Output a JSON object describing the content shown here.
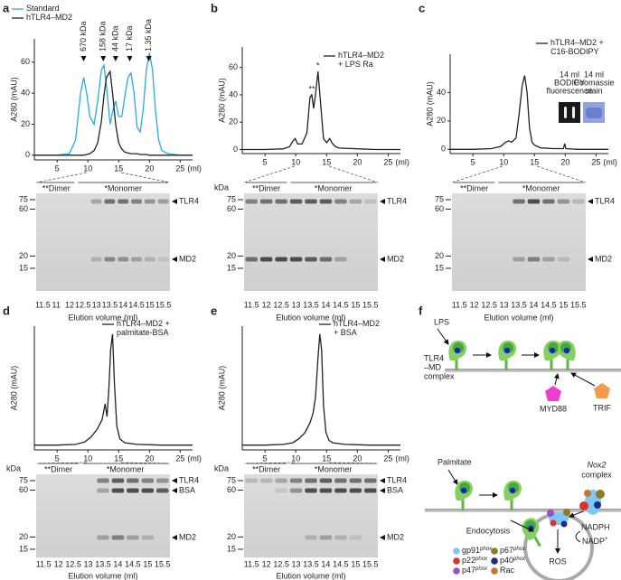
{
  "chart_data": [
    {
      "type": "line",
      "panel": "a",
      "xlabel": "(ml)",
      "ylabel": "A280 (mAU)",
      "xlim": [
        1.3,
        27
      ],
      "xticks": [
        5,
        10,
        15,
        20,
        25
      ],
      "ylim": [
        -3,
        75
      ],
      "yticks": [
        0,
        20,
        40,
        60
      ],
      "legend": "upper left",
      "x": [
        1.3,
        5,
        7,
        8,
        8.8,
        9.3,
        9.8,
        10.3,
        11,
        11.6,
        12.2,
        12.6,
        13,
        13.6,
        14,
        14.5,
        15,
        15.5,
        16,
        16.5,
        17,
        17.5,
        18,
        18.5,
        19,
        19.5,
        20,
        20.5,
        21,
        21.5,
        22,
        23,
        25,
        27
      ],
      "series": [
        {
          "name": "Standard",
          "color": "#29abe2",
          "values": [
            0,
            0,
            1,
            10,
            40,
            50,
            40,
            25,
            20,
            35,
            55,
            58,
            45,
            20,
            28,
            35,
            25,
            25,
            38,
            50,
            53,
            40,
            18,
            15,
            30,
            55,
            66,
            55,
            28,
            10,
            3,
            1,
            0,
            0
          ]
        },
        {
          "name": "hTLR4–MD2",
          "color": "#222222",
          "values": [
            0,
            0,
            0,
            0,
            0,
            0,
            0.5,
            1,
            3,
            8,
            22,
            38,
            50,
            54,
            40,
            20,
            8,
            4,
            2,
            1.5,
            1,
            1,
            1,
            0.5,
            0.5,
            0.5,
            0,
            0,
            0,
            0,
            0,
            0,
            0,
            0
          ]
        }
      ],
      "markers": [
        {
          "x": 9.3,
          "label": "670 kDa"
        },
        {
          "x": 12.5,
          "label": "158 kDa"
        },
        {
          "x": 14.5,
          "label": "44 kDa"
        },
        {
          "x": 16.8,
          "label": "17 kDa"
        },
        {
          "x": 19.9,
          "label": "1.35 kDa"
        }
      ]
    },
    {
      "type": "line",
      "panel": "b",
      "xlabel": "(ml)",
      "ylabel": "A280 (mAU)",
      "xlim": [
        1.3,
        27
      ],
      "xticks": [
        5,
        10,
        15,
        20,
        25
      ],
      "ylim": [
        -3,
        75
      ],
      "yticks": [
        0,
        20,
        40,
        60
      ],
      "legend": "upper right",
      "x": [
        1.3,
        5,
        8,
        9,
        9.5,
        9.9,
        10.3,
        11,
        11.8,
        12.3,
        12.6,
        12.9,
        13.2,
        13.6,
        14,
        14.5,
        15,
        15.5,
        16,
        16.5,
        17,
        20,
        23,
        27
      ],
      "series": [
        {
          "name": "hTLR4–MD2\n+ LPS Ra",
          "color": "#222222",
          "values": [
            0,
            0,
            0.5,
            2,
            6,
            8,
            4,
            4,
            12,
            38,
            40,
            30,
            40,
            57,
            35,
            8,
            5,
            8,
            4,
            2,
            1,
            0.5,
            0,
            0
          ]
        }
      ],
      "annotations": [
        {
          "text": "**",
          "x": 12.6,
          "y": 40
        },
        {
          "text": "*",
          "x": 13.6,
          "y": 57
        }
      ]
    },
    {
      "type": "line",
      "panel": "c",
      "xlabel": "(ml)",
      "ylabel": "A280 (mAU)",
      "xlim": [
        1.3,
        27
      ],
      "xticks": [
        5,
        10,
        15,
        20,
        25
      ],
      "ylim": [
        -3,
        67
      ],
      "yticks": [
        0,
        20,
        40
      ],
      "legend": "upper right",
      "x": [
        1.3,
        5,
        8,
        9.5,
        10.3,
        10.8,
        11.3,
        12,
        12.5,
        13,
        13.4,
        13.8,
        14.2,
        14.6,
        15,
        16,
        18,
        19.7,
        19.9,
        20.1,
        22,
        25,
        27
      ],
      "series": [
        {
          "name": "hTLR4–MD2 +\nC16-BODIPY",
          "color": "#222222",
          "values": [
            0,
            0,
            0.5,
            2,
            5,
            6,
            5,
            8,
            25,
            45,
            52,
            40,
            15,
            5,
            3,
            1,
            0.5,
            0.5,
            4,
            0.5,
            0,
            0,
            0
          ]
        }
      ],
      "insets": [
        {
          "text": [
            "14 ml",
            "BODIPY",
            "fluorescence"
          ]
        },
        {
          "text": [
            "14 ml",
            "Coomassie",
            "stain"
          ]
        }
      ]
    },
    {
      "type": "line",
      "panel": "d",
      "xlabel": "(ml)",
      "ylabel": "A280 (mAU)",
      "xlim": [
        1.3,
        27
      ],
      "xticks": [
        5,
        10,
        15,
        20,
        25
      ],
      "ylim": [
        -3,
        75
      ],
      "legend": "upper right",
      "x": [
        1.3,
        5,
        8,
        9.5,
        10.5,
        11.5,
        12.3,
        12.8,
        13.1,
        13.4,
        13.7,
        14,
        14.3,
        14.7,
        15.2,
        16,
        18,
        22,
        27
      ],
      "series": [
        {
          "name": "hTLR4–MD2 +\npalmitate-BSA",
          "color": "#222222",
          "values": [
            0,
            0,
            0.5,
            2,
            5,
            10,
            16,
            26,
            18,
            35,
            60,
            70,
            40,
            12,
            4,
            1.5,
            0.5,
            0,
            0
          ]
        }
      ]
    },
    {
      "type": "line",
      "panel": "e",
      "xlabel": "(ml)",
      "ylabel": "A280 (mAU)",
      "xlim": [
        1.3,
        27
      ],
      "xticks": [
        5,
        10,
        15,
        20,
        25
      ],
      "ylim": [
        -3,
        75
      ],
      "legend": "upper right",
      "x": [
        1.3,
        5,
        8,
        9.5,
        10.5,
        11.5,
        12.3,
        12.8,
        13.2,
        13.6,
        13.9,
        14.2,
        14.5,
        14.9,
        15.4,
        16,
        18,
        22,
        27
      ],
      "series": [
        {
          "name": "hTLR4–MD2\n+ BSA",
          "color": "#222222",
          "values": [
            0,
            0,
            0.5,
            1.5,
            4,
            8,
            14,
            20,
            30,
            55,
            70,
            60,
            25,
            8,
            3,
            1.5,
            0.5,
            0,
            0
          ]
        }
      ]
    }
  ],
  "gels": [
    {
      "ladder": [
        75,
        60,
        20,
        15
      ],
      "groups": [
        "**Dimer",
        "*Monomer"
      ],
      "lanes": [
        "11.5",
        "11",
        "12",
        "12.5",
        "13",
        "13.5",
        "14",
        "14.5",
        "15",
        "15.5"
      ],
      "bands": [
        "TLR4",
        "MD2"
      ],
      "xlabel": "Elution volume (ml)"
    },
    {
      "kda": "kDa",
      "ladder": [
        75,
        60,
        20,
        15
      ],
      "groups": [
        "**Dimer",
        "*Monomer"
      ],
      "lanes": [
        "11.5",
        "12",
        "12.5",
        "13",
        "13.5",
        "14",
        "14.5",
        "15",
        "15.5"
      ],
      "bands": [
        "TLR4",
        "MD2"
      ],
      "xlabel": "Elution volume (ml)"
    },
    {
      "ladder": [
        75,
        60,
        20,
        15
      ],
      "groups": [
        "**Dimer",
        "*Monomer"
      ],
      "lanes": [
        "11.5",
        "12",
        "12.5",
        "13",
        "13.5",
        "14",
        "14.5",
        "15",
        "15.5"
      ],
      "bands": [
        "TLR4",
        "MD2"
      ],
      "xlabel": "Elution volume (ml)"
    },
    {
      "kda": "kDa",
      "ladder": [
        75,
        60,
        20,
        15
      ],
      "groups": [
        "**Dimer",
        "*Monomer"
      ],
      "lanes": [
        "11.5",
        "12",
        "12.5",
        "13",
        "13.5",
        "14",
        "14.5",
        "15",
        "15.5"
      ],
      "bands": [
        "TLR4",
        "BSA",
        "MD2"
      ],
      "xlabel": "Elution volume (ml)"
    },
    {
      "kda": "kDa",
      "ladder": [
        75,
        60,
        20,
        15
      ],
      "groups": [
        "**Dimer",
        "*Monomer"
      ],
      "lanes": [
        "11.5",
        "12",
        "12.5",
        "13",
        "13.5",
        "14",
        "14.5",
        "15",
        "15.5"
      ],
      "bands": [
        "TLR4",
        "BSA",
        "MD2"
      ],
      "xlabel": "Elution volume (ml)"
    }
  ],
  "diagram": {
    "label": "f",
    "lps": "LPS",
    "complex": [
      "TLR4",
      "–MD",
      "complex"
    ],
    "myd88": "MYD88",
    "trif": "TRIF",
    "palmitate": "Palmitate",
    "endocytosis": "Endocytosis",
    "nox2": "Nox2",
    "nox2_complex": "complex",
    "nadph": "NADPH",
    "nadp": "NADP",
    "nadp_sup": "+",
    "ros": "ROS",
    "legend": [
      {
        "name": "gp91",
        "sup": "phox",
        "color": "#7fc8f5"
      },
      {
        "name": "p22",
        "sup": "phox",
        "color": "#d9332b"
      },
      {
        "name": "p47",
        "sup": "phox",
        "color": "#9b4fc0"
      },
      {
        "name": "p67",
        "sup": "phox",
        "color": "#8a7a2a"
      },
      {
        "name": "p40",
        "sup": "phox",
        "color": "#1f2a8a"
      },
      {
        "name": "Rac",
        "color": "#c8742f"
      }
    ]
  }
}
